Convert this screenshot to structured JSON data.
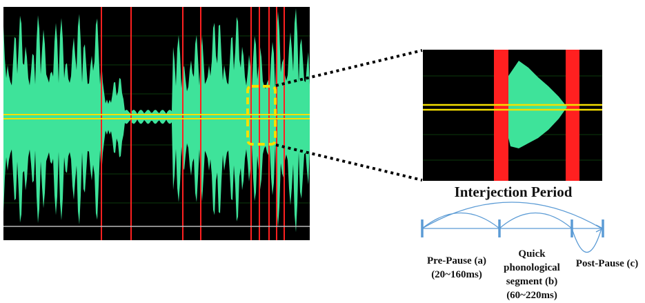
{
  "title": "Interjection Period",
  "labels": [
    {
      "lines": [
        "Pre-Pause (a)",
        "(20~160ms)"
      ]
    },
    {
      "lines": [
        "Quick",
        "phonological",
        "segment (b)",
        "(60~220ms)"
      ]
    },
    {
      "lines": [
        "Post-Pause (c)"
      ]
    }
  ]
}
